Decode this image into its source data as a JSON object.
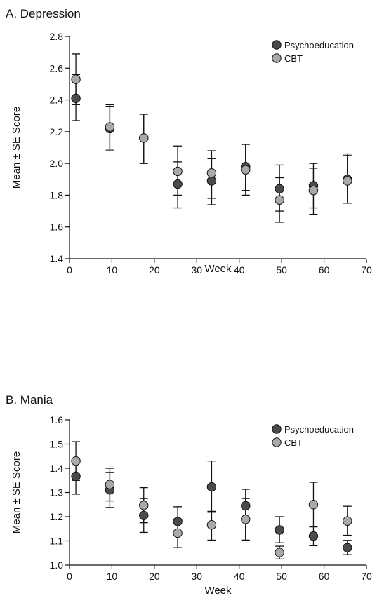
{
  "chart_data": [
    {
      "type": "scatter",
      "title": "A. Depression",
      "xlabel": "Week",
      "ylabel": "Mean ± SE Score",
      "xlim": [
        0,
        70
      ],
      "ylim": [
        1.4,
        2.8
      ],
      "xticks": [
        "0",
        "10",
        "20",
        "30",
        "40",
        "50",
        "60",
        "70"
      ],
      "yticks": [
        "1.4",
        "1.6",
        "1.8",
        "2.0",
        "2.2",
        "2.4",
        "2.6",
        "2.8"
      ],
      "legend_position": "top-right",
      "series": [
        {
          "name": "Psychoeducation",
          "color": "#4a4a4a",
          "x": [
            1.5,
            9.5,
            17.5,
            25.5,
            33.5,
            41.5,
            49.5,
            57.5,
            65.5
          ],
          "y": [
            2.41,
            2.22,
            2.16,
            1.87,
            1.89,
            1.98,
            1.84,
            1.86,
            1.9
          ],
          "err_low": [
            2.27,
            2.08,
            2.0,
            1.72,
            1.74,
            1.83,
            1.7,
            1.72,
            1.75
          ],
          "err_high": [
            2.56,
            2.36,
            2.31,
            2.01,
            2.03,
            2.12,
            1.91,
            2.0,
            2.06
          ]
        },
        {
          "name": "CBT",
          "color": "#a9a9a9",
          "x": [
            1.5,
            9.5,
            17.5,
            25.5,
            33.5,
            41.5,
            49.5,
            57.5,
            65.5
          ],
          "y": [
            2.53,
            2.23,
            2.16,
            1.95,
            1.94,
            1.96,
            1.77,
            1.83,
            1.89
          ],
          "err_low": [
            2.37,
            2.09,
            2.0,
            1.8,
            1.78,
            1.8,
            1.63,
            1.68,
            1.75
          ],
          "err_high": [
            2.69,
            2.37,
            2.31,
            2.11,
            2.08,
            2.12,
            1.99,
            1.97,
            2.05
          ]
        }
      ]
    },
    {
      "type": "scatter",
      "title": "B. Mania",
      "xlabel": "Week",
      "ylabel": "Mean ± SE Score",
      "xlim": [
        0,
        70
      ],
      "ylim": [
        1.0,
        1.6
      ],
      "xticks": [
        "0",
        "10",
        "20",
        "30",
        "40",
        "50",
        "60",
        "70"
      ],
      "yticks": [
        "1.0",
        "1.1",
        "1.2",
        "1.3",
        "1.4",
        "1.5",
        "1.6"
      ],
      "legend_position": "top-right",
      "series": [
        {
          "name": "Psychoeducation",
          "color": "#4a4a4a",
          "x": [
            1.5,
            9.5,
            17.5,
            25.5,
            33.5,
            41.5,
            49.5,
            57.5,
            65.5
          ],
          "y": [
            1.367,
            1.311,
            1.205,
            1.18,
            1.323,
            1.245,
            1.145,
            1.12,
            1.072
          ],
          "err_low": [
            1.293,
            1.238,
            1.135,
            1.072,
            1.218,
            1.103,
            1.092,
            1.08,
            1.043
          ],
          "err_high": [
            1.432,
            1.383,
            1.275,
            1.241,
            1.43,
            1.313,
            1.2,
            1.158,
            1.102
          ]
        },
        {
          "name": "CBT",
          "color": "#a9a9a9",
          "x": [
            1.5,
            9.5,
            17.5,
            25.5,
            33.5,
            41.5,
            49.5,
            57.5,
            65.5
          ],
          "y": [
            1.43,
            1.333,
            1.247,
            1.132,
            1.166,
            1.189,
            1.052,
            1.25,
            1.182
          ],
          "err_low": [
            1.35,
            1.265,
            1.175,
            1.072,
            1.103,
            1.103,
            1.025,
            1.158,
            1.123
          ],
          "err_high": [
            1.51,
            1.4,
            1.32,
            1.19,
            1.222,
            1.275,
            1.078,
            1.342,
            1.243
          ]
        }
      ]
    }
  ]
}
